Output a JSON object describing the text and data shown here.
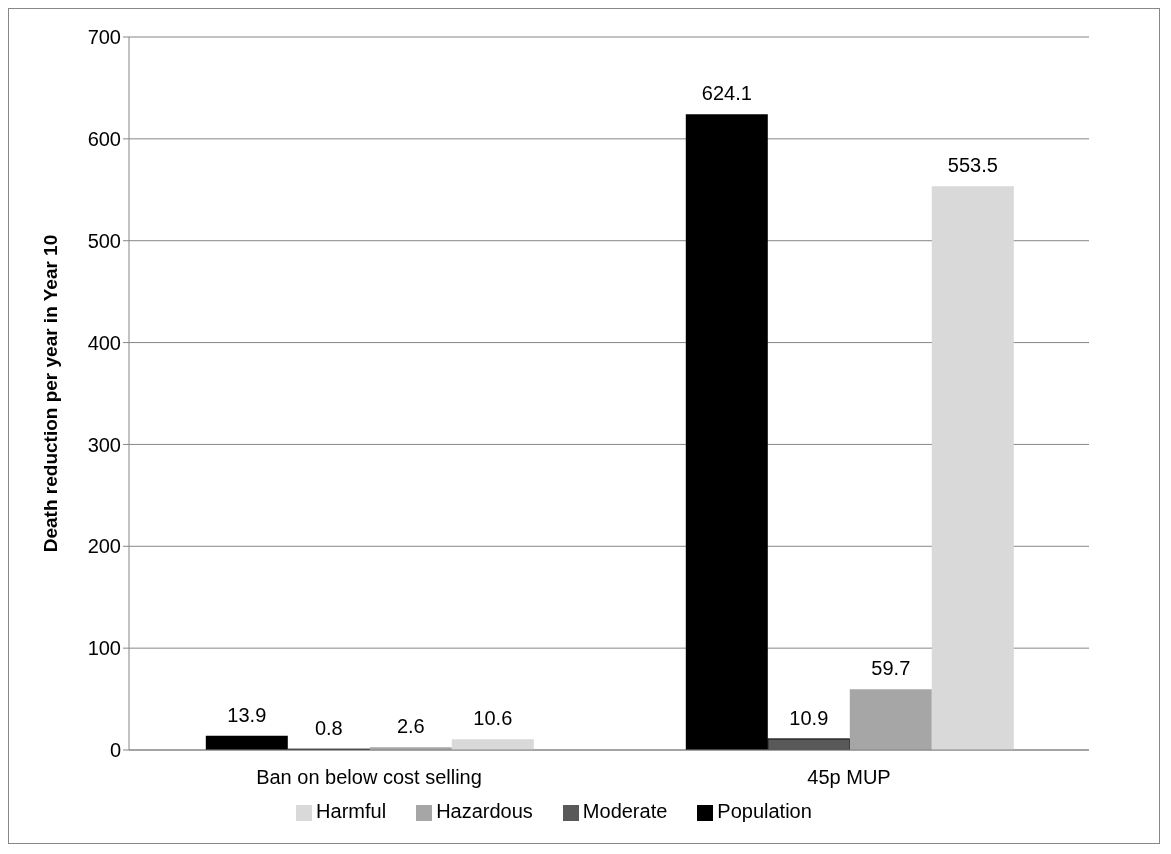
{
  "chart_data": {
    "type": "bar",
    "ylabel": "Death reduction per year in Year 10",
    "categories": [
      "Ban on below cost selling",
      "45p MUP"
    ],
    "series": [
      {
        "name": "Population",
        "color": "#000000",
        "values": [
          13.9,
          624.1
        ]
      },
      {
        "name": "Moderate",
        "color": "#595959",
        "values": [
          0.8,
          10.9
        ]
      },
      {
        "name": "Hazardous",
        "color": "#a6a6a6",
        "values": [
          2.6,
          59.7
        ]
      },
      {
        "name": "Harmful",
        "color": "#d9d9d9",
        "values": [
          10.6,
          553.5
        ]
      }
    ],
    "ylim": [
      0,
      700
    ],
    "yticks": [
      0,
      100,
      200,
      300,
      400,
      500,
      600,
      700
    ],
    "grid": "y",
    "legend": "bottom",
    "data_labels": true
  }
}
